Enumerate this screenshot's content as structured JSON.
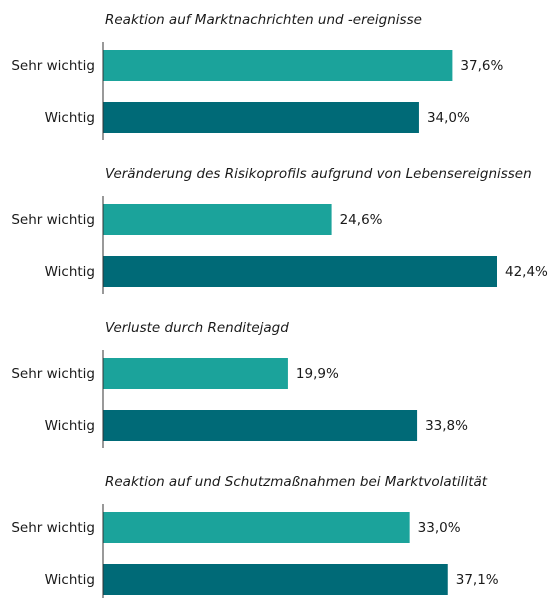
{
  "chart_data": [
    {
      "type": "bar",
      "title": "Reaktion auf Marktnachrichten und -ereignisse",
      "categories": [
        "Sehr wichtig",
        "Wichtig"
      ],
      "values": [
        37.6,
        34.0
      ],
      "value_labels": [
        "37,6%",
        "34,0%"
      ],
      "colors": [
        "#1ba39b",
        "#006a77"
      ]
    },
    {
      "type": "bar",
      "title": "Veränderung des Risikoprofils aufgrund von Lebensereignissen",
      "categories": [
        "Sehr wichtig",
        "Wichtig"
      ],
      "values": [
        24.6,
        42.4
      ],
      "value_labels": [
        "24,6%",
        "42,4%"
      ],
      "colors": [
        "#1ba39b",
        "#006a77"
      ]
    },
    {
      "type": "bar",
      "title": "Verluste durch Renditejagd",
      "categories": [
        "Sehr wichtig",
        "Wichtig"
      ],
      "values": [
        19.9,
        33.8
      ],
      "value_labels": [
        "19,9%",
        "33,8%"
      ],
      "colors": [
        "#1ba39b",
        "#006a77"
      ]
    },
    {
      "type": "bar",
      "title": "Reaktion auf und Schutzmaßnahmen bei Marktvolatilität",
      "categories": [
        "Sehr wichtig",
        "Wichtig"
      ],
      "values": [
        33.0,
        37.1
      ],
      "value_labels": [
        "33,0%",
        "37,1%"
      ],
      "colors": [
        "#1ba39b",
        "#006a77"
      ]
    }
  ]
}
